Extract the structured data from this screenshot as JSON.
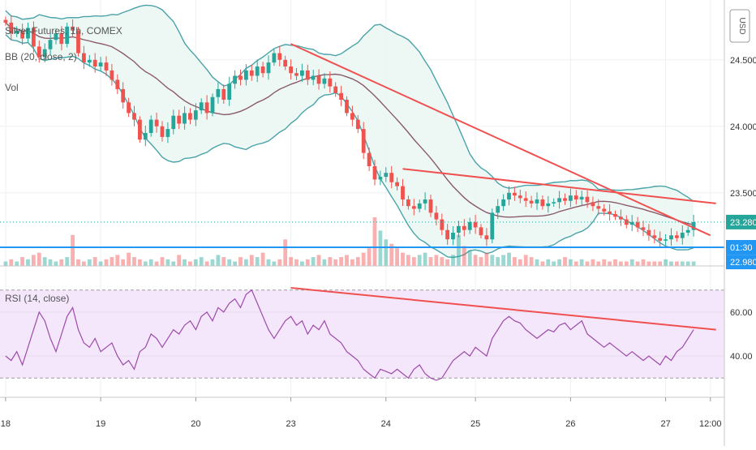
{
  "chart_data": {
    "type": "candlestick",
    "symbol_label": "Silver Futures, 1h, COMEX",
    "indicator_bb_label": "BB (20, close, 2)",
    "indicator_vol_label": "Vol",
    "rsi_label": "RSI (14, close)",
    "currency_button": "USD",
    "x_ticks": [
      {
        "label": "18",
        "i": 0
      },
      {
        "label": "19",
        "i": 17
      },
      {
        "label": "20",
        "i": 34
      },
      {
        "label": "23",
        "i": 51
      },
      {
        "label": "24",
        "i": 68
      },
      {
        "label": "25",
        "i": 84
      },
      {
        "label": "26",
        "i": 101
      },
      {
        "label": "27",
        "i": 118
      },
      {
        "label": "12:00",
        "i": 126
      }
    ],
    "x_range": [
      -1,
      128.5
    ],
    "price_axis": {
      "ticks": [
        "24.500",
        "24.000",
        "23.500"
      ],
      "tick_values": [
        24.5,
        24.0,
        23.5
      ],
      "range": [
        22.95,
        24.95
      ]
    },
    "price_label_current": {
      "text": "23.280",
      "value": 23.28,
      "color": "#26a69a"
    },
    "price_label_time": {
      "text": "01:30",
      "value": 23.09,
      "color": "#2196f3"
    },
    "price_label_low": {
      "text": "22.980",
      "value": 22.98,
      "color": "#2196f3"
    },
    "horizontal_line": {
      "value": 23.09,
      "color": "#2196f3"
    },
    "rsi_axis": {
      "ticks": [
        "60.00",
        "40.00"
      ],
      "tick_values": [
        60,
        40
      ],
      "range": [
        22,
        78
      ],
      "bands": [
        70,
        30
      ]
    },
    "close": [
      24.78,
      24.7,
      24.72,
      24.66,
      24.74,
      24.6,
      24.52,
      24.58,
      24.65,
      24.7,
      24.62,
      24.75,
      24.72,
      24.55,
      24.48,
      24.5,
      24.45,
      24.48,
      24.42,
      24.35,
      24.28,
      24.18,
      24.1,
      24.05,
      23.9,
      23.95,
      24.05,
      24.0,
      23.92,
      23.98,
      24.08,
      24.02,
      24.1,
      24.05,
      24.12,
      24.18,
      24.1,
      24.22,
      24.28,
      24.2,
      24.32,
      24.38,
      24.35,
      24.42,
      24.38,
      24.45,
      24.4,
      24.48,
      24.55,
      24.5,
      24.45,
      24.4,
      24.38,
      24.42,
      24.35,
      24.38,
      24.32,
      24.36,
      24.3,
      24.25,
      24.2,
      24.1,
      24.05,
      23.98,
      23.8,
      23.7,
      23.6,
      23.62,
      23.65,
      23.58,
      23.55,
      23.45,
      23.4,
      23.38,
      23.42,
      23.45,
      23.35,
      23.3,
      23.22,
      23.15,
      23.2,
      23.25,
      23.22,
      23.28,
      23.24,
      23.18,
      23.15,
      23.35,
      23.4,
      23.45,
      23.5,
      23.48,
      23.46,
      23.44,
      23.42,
      23.45,
      23.4,
      23.42,
      23.43,
      23.46,
      23.44,
      23.48,
      23.45,
      23.47,
      23.43,
      23.4,
      23.38,
      23.36,
      23.34,
      23.32,
      23.3,
      23.26,
      23.28,
      23.24,
      23.22,
      23.18,
      23.16,
      23.14,
      23.15,
      23.18,
      23.16,
      23.2,
      23.22,
      23.28
    ],
    "volume": [
      2,
      3,
      2,
      4,
      3,
      5,
      6,
      4,
      3,
      2,
      3,
      4,
      14,
      3,
      2,
      3,
      4,
      2,
      3,
      4,
      5,
      3,
      6,
      4,
      3,
      2,
      3,
      2,
      4,
      3,
      2,
      5,
      3,
      2,
      3,
      4,
      2,
      3,
      5,
      4,
      3,
      2,
      4,
      3,
      5,
      4,
      6,
      3,
      2,
      3,
      12,
      4,
      3,
      2,
      3,
      4,
      5,
      3,
      4,
      3,
      4,
      5,
      3,
      4,
      6,
      8,
      22,
      16,
      12,
      10,
      8,
      6,
      5,
      4,
      5,
      6,
      4,
      5,
      4,
      3,
      5,
      14,
      9,
      7,
      5,
      4,
      6,
      5,
      4,
      5,
      6,
      4,
      3,
      5,
      4,
      3,
      2,
      3,
      2,
      3,
      4,
      3,
      2,
      3,
      2,
      3,
      2,
      3,
      2,
      3,
      2,
      2,
      3,
      2,
      3,
      2,
      2,
      2,
      3,
      2,
      2,
      2,
      2,
      2
    ],
    "rsi": [
      40,
      38,
      42,
      36,
      44,
      52,
      60,
      56,
      48,
      42,
      50,
      58,
      62,
      52,
      46,
      44,
      48,
      42,
      44,
      46,
      40,
      36,
      38,
      34,
      42,
      44,
      50,
      48,
      44,
      48,
      52,
      50,
      54,
      56,
      52,
      58,
      60,
      56,
      62,
      60,
      64,
      66,
      62,
      68,
      70,
      64,
      58,
      52,
      48,
      52,
      56,
      58,
      54,
      56,
      50,
      54,
      52,
      56,
      50,
      48,
      46,
      42,
      40,
      38,
      34,
      32,
      30,
      34,
      33,
      32,
      34,
      32,
      30,
      34,
      36,
      32,
      30,
      29,
      30,
      34,
      38,
      40,
      42,
      40,
      44,
      42,
      40,
      48,
      52,
      56,
      58,
      56,
      55,
      52,
      50,
      48,
      50,
      52,
      51,
      54,
      55,
      52,
      54,
      56,
      50,
      48,
      46,
      44,
      46,
      44,
      42,
      40,
      42,
      40,
      38,
      40,
      38,
      36,
      40,
      38,
      42,
      44,
      48,
      52
    ],
    "resistance_line_price": {
      "from_i": 51,
      "from_v": 24.62,
      "to_i": 126,
      "to_v": 23.18,
      "color": "#f05050"
    },
    "flat_resistance_price": {
      "from_i": 71,
      "from_v": 23.68,
      "to_i": 127,
      "to_v": 23.42,
      "color": "#f05050"
    },
    "rsi_trendline": {
      "from_i": 51,
      "from_v": 71,
      "to_i": 127,
      "to_v": 52,
      "color": "#f05050"
    },
    "colors": {
      "up": "#26a69a",
      "down": "#ef5350",
      "bb_band": "#4aa3a9",
      "bb_basis": "#8a5a6a",
      "bb_fill": "#e8f6f3",
      "rsi_line": "#9c4aa9",
      "rsi_fill": "#f4e6fb"
    }
  }
}
